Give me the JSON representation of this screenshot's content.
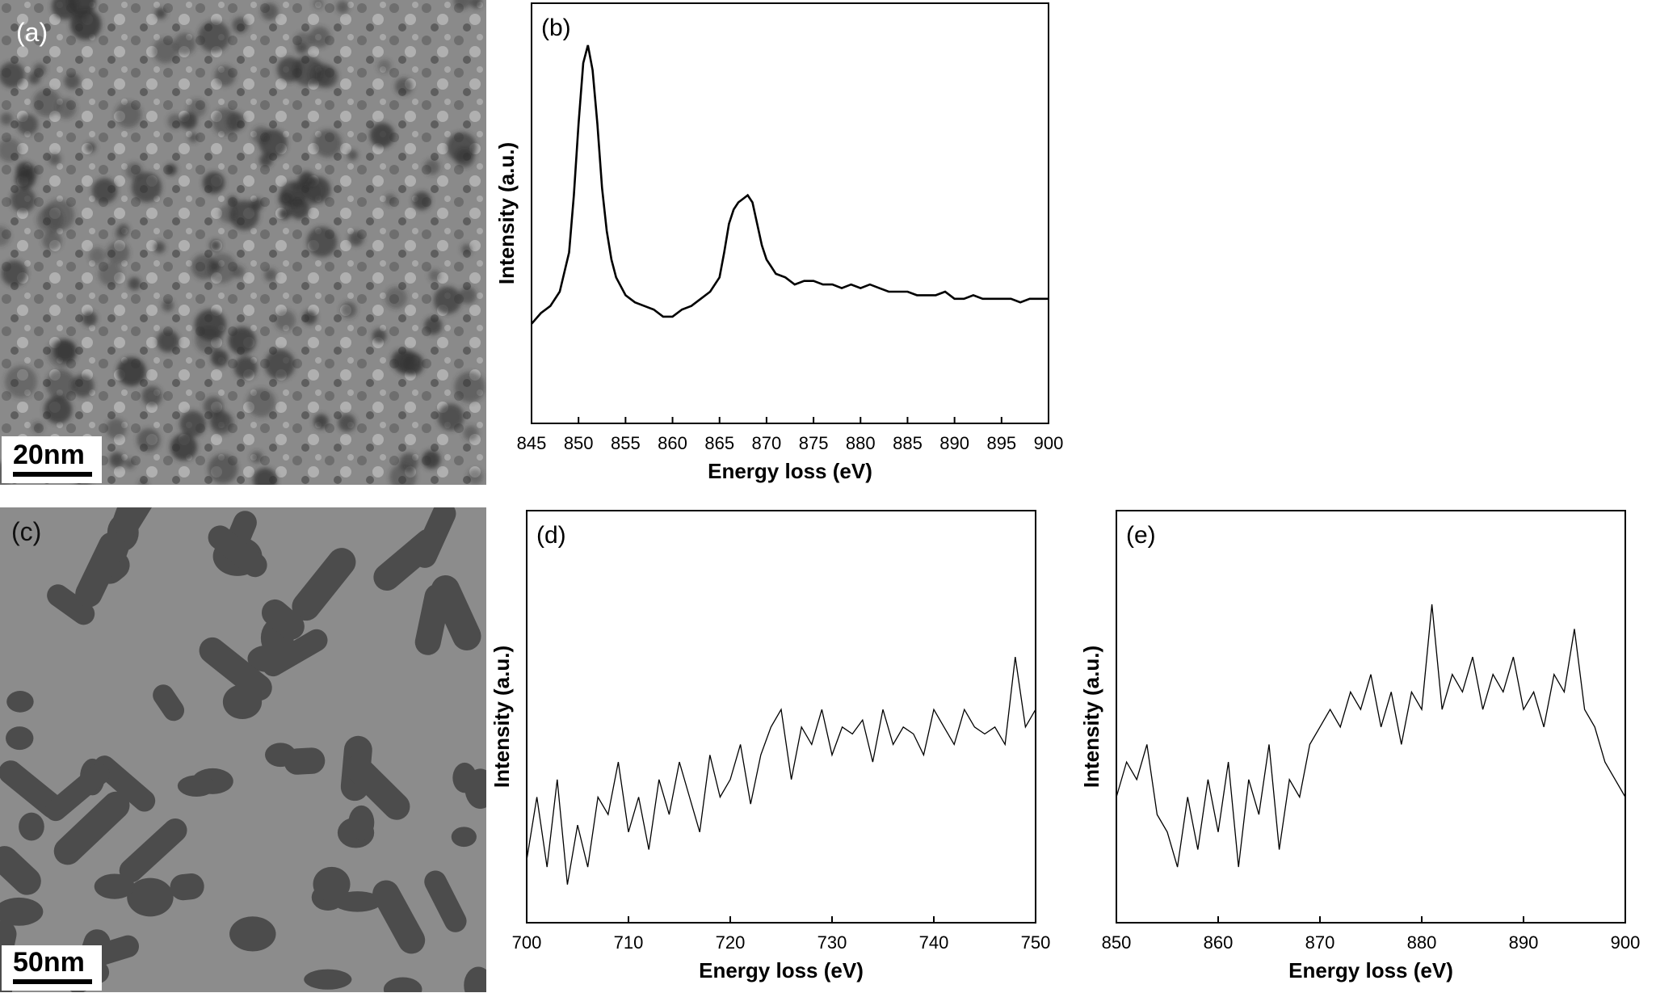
{
  "panels": {
    "a": {
      "label": "(a)",
      "scale_bar": "20nm"
    },
    "c": {
      "label": "(c)",
      "scale_bar": "50nm"
    }
  },
  "chart_data": [
    {
      "panel": "(b)",
      "type": "line",
      "xlabel": "Energy loss (eV)",
      "ylabel": "Intensity (a.u.)",
      "xlim": [
        845,
        900
      ],
      "xticks": [
        845,
        850,
        855,
        860,
        865,
        870,
        875,
        880,
        885,
        890,
        895,
        900
      ],
      "y_ticks_shown": false,
      "grid": false,
      "series": [
        {
          "x": [
            845,
            846,
            847,
            848,
            849,
            849.5,
            850,
            850.5,
            851,
            851.5,
            852,
            852.5,
            853,
            853.5,
            854,
            855,
            856,
            857,
            858,
            859,
            860,
            861,
            862,
            863,
            864,
            865,
            865.5,
            866,
            866.5,
            867,
            867.5,
            868,
            868.5,
            869,
            869.5,
            870,
            870.5,
            871,
            872,
            873,
            874,
            875,
            876,
            877,
            878,
            879,
            880,
            881,
            882,
            883,
            884,
            885,
            886,
            887,
            888,
            889,
            890,
            891,
            892,
            893,
            894,
            895,
            896,
            897,
            898,
            899,
            900
          ],
          "y": [
            0.22,
            0.25,
            0.27,
            0.31,
            0.42,
            0.58,
            0.78,
            0.95,
            1.0,
            0.93,
            0.78,
            0.6,
            0.48,
            0.4,
            0.35,
            0.3,
            0.28,
            0.27,
            0.26,
            0.24,
            0.24,
            0.26,
            0.27,
            0.29,
            0.31,
            0.35,
            0.42,
            0.5,
            0.54,
            0.56,
            0.57,
            0.58,
            0.56,
            0.5,
            0.44,
            0.4,
            0.38,
            0.36,
            0.35,
            0.33,
            0.34,
            0.34,
            0.33,
            0.33,
            0.32,
            0.33,
            0.32,
            0.33,
            0.32,
            0.31,
            0.31,
            0.31,
            0.3,
            0.3,
            0.3,
            0.31,
            0.29,
            0.29,
            0.3,
            0.29,
            0.29,
            0.29,
            0.29,
            0.28,
            0.29,
            0.29,
            0.29
          ]
        }
      ]
    },
    {
      "panel": "(d)",
      "type": "line",
      "xlabel": "Energy loss (eV)",
      "ylabel": "Intensity (a.u.)",
      "xlim": [
        700,
        750
      ],
      "xticks": [
        700,
        710,
        720,
        730,
        740,
        750
      ],
      "y_ticks_shown": false,
      "grid": false,
      "series": [
        {
          "x": [
            700,
            701,
            702,
            703,
            704,
            705,
            706,
            707,
            708,
            709,
            710,
            711,
            712,
            713,
            714,
            715,
            716,
            717,
            718,
            719,
            720,
            721,
            722,
            723,
            724,
            725,
            726,
            727,
            728,
            729,
            730,
            731,
            732,
            733,
            734,
            735,
            736,
            737,
            738,
            739,
            740,
            741,
            742,
            743,
            744,
            745,
            746,
            747,
            748,
            749,
            750
          ],
          "y": [
            0.12,
            0.3,
            0.1,
            0.35,
            0.05,
            0.22,
            0.1,
            0.3,
            0.25,
            0.4,
            0.2,
            0.3,
            0.15,
            0.35,
            0.25,
            0.4,
            0.3,
            0.2,
            0.42,
            0.3,
            0.35,
            0.45,
            0.28,
            0.42,
            0.5,
            0.55,
            0.35,
            0.5,
            0.45,
            0.55,
            0.42,
            0.5,
            0.48,
            0.52,
            0.4,
            0.55,
            0.45,
            0.5,
            0.48,
            0.42,
            0.55,
            0.5,
            0.45,
            0.55,
            0.5,
            0.48,
            0.5,
            0.45,
            0.7,
            0.5,
            0.55
          ]
        }
      ]
    },
    {
      "panel": "(e)",
      "type": "line",
      "xlabel": "Energy loss (eV)",
      "ylabel": "Intensity (a.u.)",
      "xlim": [
        850,
        900
      ],
      "xticks": [
        850,
        860,
        870,
        880,
        890,
        900
      ],
      "y_ticks_shown": false,
      "grid": false,
      "series": [
        {
          "x": [
            850,
            851,
            852,
            853,
            854,
            855,
            856,
            857,
            858,
            859,
            860,
            861,
            862,
            863,
            864,
            865,
            866,
            867,
            868,
            869,
            870,
            871,
            872,
            873,
            874,
            875,
            876,
            877,
            878,
            879,
            880,
            881,
            882,
            883,
            884,
            885,
            886,
            887,
            888,
            889,
            890,
            891,
            892,
            893,
            894,
            895,
            896,
            897,
            898,
            899,
            900
          ],
          "y": [
            0.3,
            0.4,
            0.35,
            0.45,
            0.25,
            0.2,
            0.1,
            0.3,
            0.15,
            0.35,
            0.2,
            0.4,
            0.1,
            0.35,
            0.25,
            0.45,
            0.15,
            0.35,
            0.3,
            0.45,
            0.5,
            0.55,
            0.5,
            0.6,
            0.55,
            0.65,
            0.5,
            0.6,
            0.45,
            0.6,
            0.55,
            0.85,
            0.55,
            0.65,
            0.6,
            0.7,
            0.55,
            0.65,
            0.6,
            0.7,
            0.55,
            0.6,
            0.5,
            0.65,
            0.6,
            0.78,
            0.55,
            0.5,
            0.4,
            0.35,
            0.3
          ]
        }
      ]
    }
  ]
}
